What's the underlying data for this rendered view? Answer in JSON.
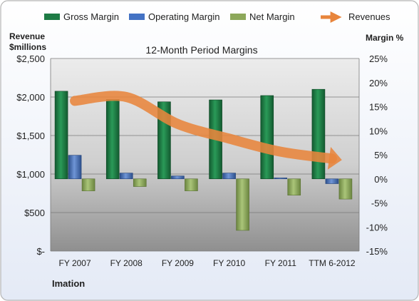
{
  "chart_data": {
    "type": "bar",
    "title": "12-Month Period Margins",
    "company": "Imation",
    "left_axis": {
      "title_line1": "Revenue",
      "title_line2": "$millions",
      "ylim": [
        0,
        2500
      ],
      "ticks": [
        2500,
        2000,
        1500,
        1000,
        500,
        0
      ],
      "tick_labels": [
        "$2,500",
        "$2,000",
        "$1,500",
        "$1,000",
        "$500",
        "$-"
      ]
    },
    "right_axis": {
      "title": "Margin %",
      "ylim": [
        -15,
        25
      ],
      "ticks": [
        25,
        20,
        15,
        10,
        5,
        0,
        -5,
        -10,
        -15
      ],
      "tick_labels": [
        "25%",
        "20%",
        "15%",
        "10%",
        "5%",
        "0%",
        "-5%",
        "-10%",
        "-15%"
      ]
    },
    "categories": [
      "FY 2007",
      "FY 2008",
      "FY 2009",
      "FY 2010",
      "FY 2011",
      "TTM 6-2012"
    ],
    "series": [
      {
        "name": "Gross Margin",
        "axis": "right",
        "kind": "bar",
        "color": "#1E7B45",
        "values": [
          18.2,
          16.5,
          16.0,
          16.4,
          17.3,
          18.6
        ]
      },
      {
        "name": "Operating Margin",
        "axis": "right",
        "kind": "bar",
        "color": "#4472C4",
        "values": [
          4.9,
          1.2,
          0.6,
          1.2,
          0.2,
          -1.0
        ]
      },
      {
        "name": "Net Margin",
        "axis": "right",
        "kind": "bar",
        "color": "#8DA85A",
        "values": [
          -2.5,
          -1.6,
          -2.5,
          -10.7,
          -3.4,
          -4.2
        ]
      },
      {
        "name": "Revenues",
        "axis": "left",
        "kind": "line",
        "color": "#E8853C",
        "values": [
          1950,
          2000,
          1650,
          1460,
          1290,
          1200
        ]
      }
    ],
    "legend_position": "top",
    "grid": true
  }
}
